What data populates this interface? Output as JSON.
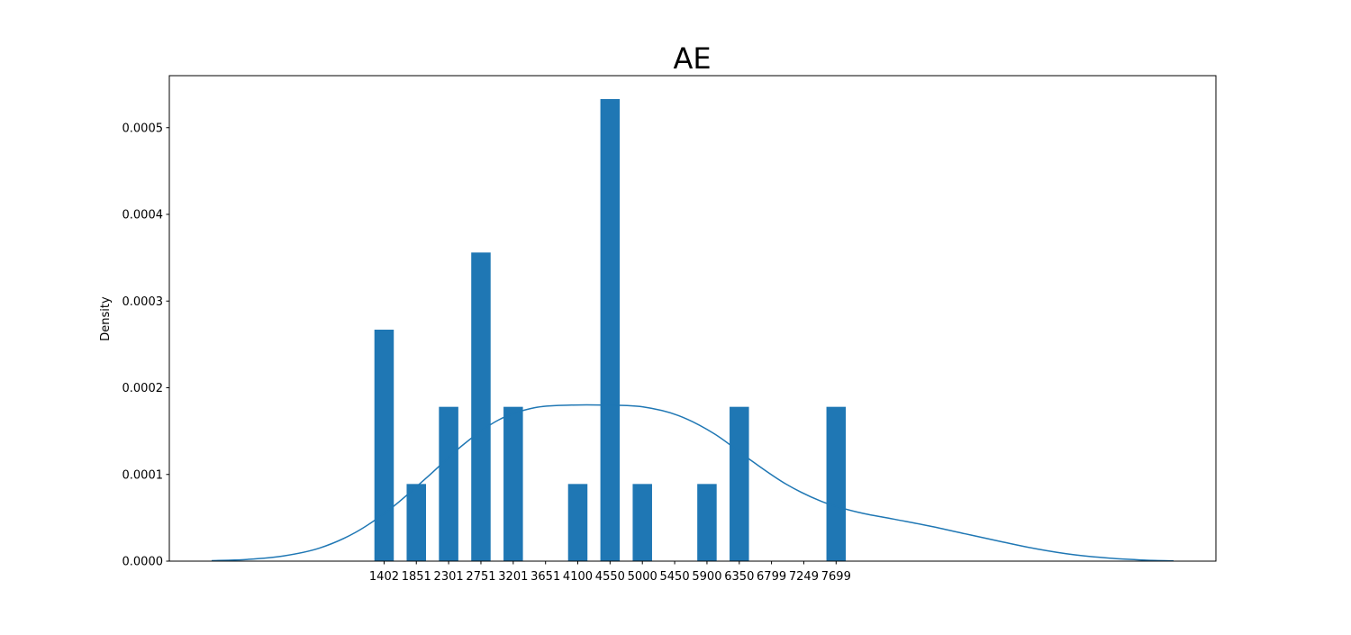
{
  "chart_data": {
    "type": "bar",
    "title": "AE",
    "xlabel": "",
    "ylabel": "Density",
    "x_tick_labels": [
      "1402",
      "1851",
      "2301",
      "2751",
      "3201",
      "3651",
      "4100",
      "4550",
      "5000",
      "5450",
      "5900",
      "6350",
      "6799",
      "7249",
      "7699"
    ],
    "bars": [
      {
        "x": 1402,
        "value": 0.000267
      },
      {
        "x": 1851,
        "value": 8.9e-05
      },
      {
        "x": 2301,
        "value": 0.000178
      },
      {
        "x": 2751,
        "value": 0.000356
      },
      {
        "x": 3201,
        "value": 0.000178
      },
      {
        "x": 4100,
        "value": 8.9e-05
      },
      {
        "x": 4550,
        "value": 0.000533
      },
      {
        "x": 5000,
        "value": 8.9e-05
      },
      {
        "x": 5900,
        "value": 8.9e-05
      },
      {
        "x": 6350,
        "value": 0.000178
      },
      {
        "x": 7699,
        "value": 0.000178
      }
    ],
    "bar_width": 270,
    "kde": {
      "x": [
        -1000,
        -500,
        0,
        500,
        1000,
        1500,
        2000,
        2500,
        3000,
        3500,
        4000,
        4500,
        5000,
        5500,
        6000,
        6500,
        7000,
        7500,
        8000,
        8500,
        9000,
        9500,
        10000,
        10500,
        11000,
        11500,
        12000,
        12400
      ],
      "y": [
        5e-07,
        2e-06,
        6e-06,
        1.5e-05,
        3.3e-05,
        6.1e-05,
        9.67e-05,
        0.000134,
        0.000163,
        0.000177,
        0.00018,
        0.00018,
        0.000178,
        0.000168,
        0.000147,
        0.000117,
        8.9e-05,
        6.88e-05,
        5.65e-05,
        4.85e-05,
        4.05e-05,
        3.15e-05,
        2.25e-05,
        1.4e-05,
        7.5e-06,
        3.5e-06,
        1.2e-06,
        3e-07
      ]
    },
    "xlim": [
      -1590,
      12990
    ],
    "ylim": [
      0,
      0.00056
    ],
    "y_ticks": [
      0,
      0.0001,
      0.0002,
      0.0003,
      0.0004,
      0.0005
    ],
    "y_tick_labels": [
      "0.0000",
      "0.0001",
      "0.0002",
      "0.0003",
      "0.0004",
      "0.0005"
    ],
    "bar_color": "#1f77b4",
    "line_color": "#1f77b4",
    "grid": false,
    "legend": "none"
  }
}
